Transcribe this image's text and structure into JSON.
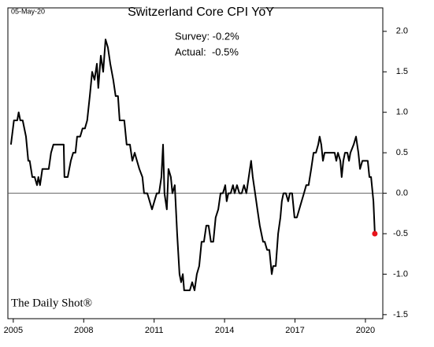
{
  "chart_data": {
    "type": "line",
    "title": "Switzerland Core CPI YoY",
    "annotations": [
      "05-May-20",
      "Survey: -0.2%",
      "Actual:  -0.5%",
      "The Daily Shot®"
    ],
    "x": [
      2004.9,
      2005.03,
      2005.17,
      2005.23,
      2005.3,
      2005.4,
      2005.54,
      2005.64,
      2005.7,
      2005.81,
      2005.91,
      2006.01,
      2006.07,
      2006.14,
      2006.24,
      2006.38,
      2006.51,
      2006.61,
      2006.71,
      2006.85,
      2007.01,
      2007.15,
      2007.18,
      2007.32,
      2007.45,
      2007.55,
      2007.65,
      2007.72,
      2007.85,
      2007.95,
      2008.05,
      2008.15,
      2008.26,
      2008.36,
      2008.46,
      2008.56,
      2008.62,
      2008.73,
      2008.83,
      2008.93,
      2009.03,
      2009.13,
      2009.26,
      2009.36,
      2009.46,
      2009.53,
      2009.73,
      2009.83,
      2009.97,
      2010.07,
      2010.17,
      2010.27,
      2010.37,
      2010.5,
      2010.57,
      2010.71,
      2010.81,
      2010.91,
      2011.01,
      2011.11,
      2011.21,
      2011.31,
      2011.38,
      2011.44,
      2011.54,
      2011.61,
      2011.71,
      2011.78,
      2011.88,
      2011.98,
      2012.08,
      2012.15,
      2012.22,
      2012.28,
      2012.52,
      2012.62,
      2012.72,
      2012.82,
      2012.92,
      2013.02,
      2013.12,
      2013.22,
      2013.32,
      2013.42,
      2013.52,
      2013.62,
      2013.73,
      2013.83,
      2013.93,
      2014.03,
      2014.09,
      2014.16,
      2014.26,
      2014.36,
      2014.43,
      2014.53,
      2014.63,
      2014.73,
      2014.83,
      2014.93,
      2015.03,
      2015.13,
      2015.2,
      2015.3,
      2015.4,
      2015.5,
      2015.57,
      2015.64,
      2015.71,
      2015.81,
      2015.91,
      2016.01,
      2016.07,
      2016.18,
      2016.28,
      2016.38,
      2016.44,
      2016.51,
      2016.61,
      2016.71,
      2016.78,
      2016.88,
      2016.98,
      2017.08,
      2017.18,
      2017.28,
      2017.38,
      2017.48,
      2017.58,
      2017.69,
      2017.79,
      2017.89,
      2017.99,
      2018.05,
      2018.12,
      2018.19,
      2018.26,
      2018.36,
      2018.49,
      2018.59,
      2018.69,
      2018.76,
      2018.83,
      2018.93,
      2018.99,
      2019.06,
      2019.13,
      2019.23,
      2019.3,
      2019.36,
      2019.5,
      2019.6,
      2019.7,
      2019.77,
      2019.87,
      2019.97,
      2020.03,
      2020.1,
      2020.17,
      2020.24,
      2020.34,
      2020.4
    ],
    "series": [
      {
        "name": "Switzerland Core CPI YoY",
        "color": "#000000",
        "values": [
          0.6,
          0.9,
          0.9,
          1.0,
          0.9,
          0.9,
          0.7,
          0.4,
          0.4,
          0.2,
          0.2,
          0.1,
          0.2,
          0.1,
          0.3,
          0.3,
          0.3,
          0.5,
          0.6,
          0.6,
          0.6,
          0.6,
          0.2,
          0.2,
          0.4,
          0.5,
          0.5,
          0.7,
          0.7,
          0.8,
          0.8,
          0.9,
          1.2,
          1.5,
          1.4,
          1.6,
          1.3,
          1.7,
          1.5,
          1.9,
          1.8,
          1.6,
          1.4,
          1.2,
          1.2,
          0.9,
          0.9,
          0.6,
          0.6,
          0.4,
          0.5,
          0.4,
          0.3,
          0.2,
          0.0,
          0.0,
          -0.1,
          -0.2,
          -0.1,
          0.0,
          0.0,
          0.2,
          0.6,
          0.0,
          -0.2,
          0.3,
          0.2,
          0.0,
          0.1,
          -0.5,
          -1.0,
          -1.1,
          -1.0,
          -1.2,
          -1.2,
          -1.1,
          -1.2,
          -1.0,
          -0.9,
          -0.6,
          -0.6,
          -0.4,
          -0.4,
          -0.6,
          -0.6,
          -0.3,
          -0.2,
          0.0,
          0.0,
          0.1,
          -0.1,
          0.0,
          0.0,
          0.1,
          0.0,
          0.1,
          0.0,
          0.0,
          0.1,
          0.0,
          0.2,
          0.4,
          0.2,
          0.0,
          -0.2,
          -0.4,
          -0.5,
          -0.6,
          -0.6,
          -0.7,
          -0.7,
          -1.0,
          -0.9,
          -0.9,
          -0.5,
          -0.3,
          -0.1,
          0.0,
          0.0,
          -0.1,
          0.0,
          0.0,
          -0.3,
          -0.3,
          -0.2,
          -0.1,
          0.0,
          0.1,
          0.1,
          0.3,
          0.5,
          0.5,
          0.6,
          0.7,
          0.6,
          0.4,
          0.5,
          0.5,
          0.5,
          0.5,
          0.5,
          0.4,
          0.5,
          0.4,
          0.2,
          0.4,
          0.5,
          0.5,
          0.4,
          0.5,
          0.6,
          0.7,
          0.5,
          0.3,
          0.4,
          0.4,
          0.4,
          0.4,
          0.2,
          0.2,
          -0.1,
          -0.5
        ]
      }
    ],
    "highlight_color": "#e8141c",
    "xlim": [
      2004.77,
      2020.74
    ],
    "xticks": [
      2005,
      2008,
      2011,
      2014,
      2017,
      2020
    ],
    "ylim": [
      -1.55,
      2.29
    ],
    "yticks": [
      {
        "value": 2.0,
        "label": "2.0"
      },
      1.5,
      {
        "value": 1.0,
        "label": "1.0"
      },
      0.5,
      {
        "value": 0.0,
        "label": "0.0"
      },
      -0.5,
      {
        "value": -1.0,
        "label": "-1.0"
      },
      -1.5
    ]
  }
}
